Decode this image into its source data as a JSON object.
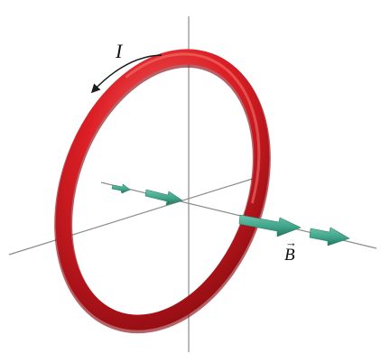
{
  "labels": {
    "current": "I",
    "field": "B",
    "field_vector_arrow": "→"
  },
  "colors": {
    "loop": "#d81c22",
    "loop_dark": "#8f0d12",
    "loop_highlight": "#f36a63",
    "field_arrow": "#3fa489",
    "field_arrow_dark": "#23725d",
    "axis": "#777777",
    "background": "#ffffff"
  },
  "icons": {
    "current_direction": "curved-arrow-icon",
    "field_vector": "arrow-right-icon"
  }
}
